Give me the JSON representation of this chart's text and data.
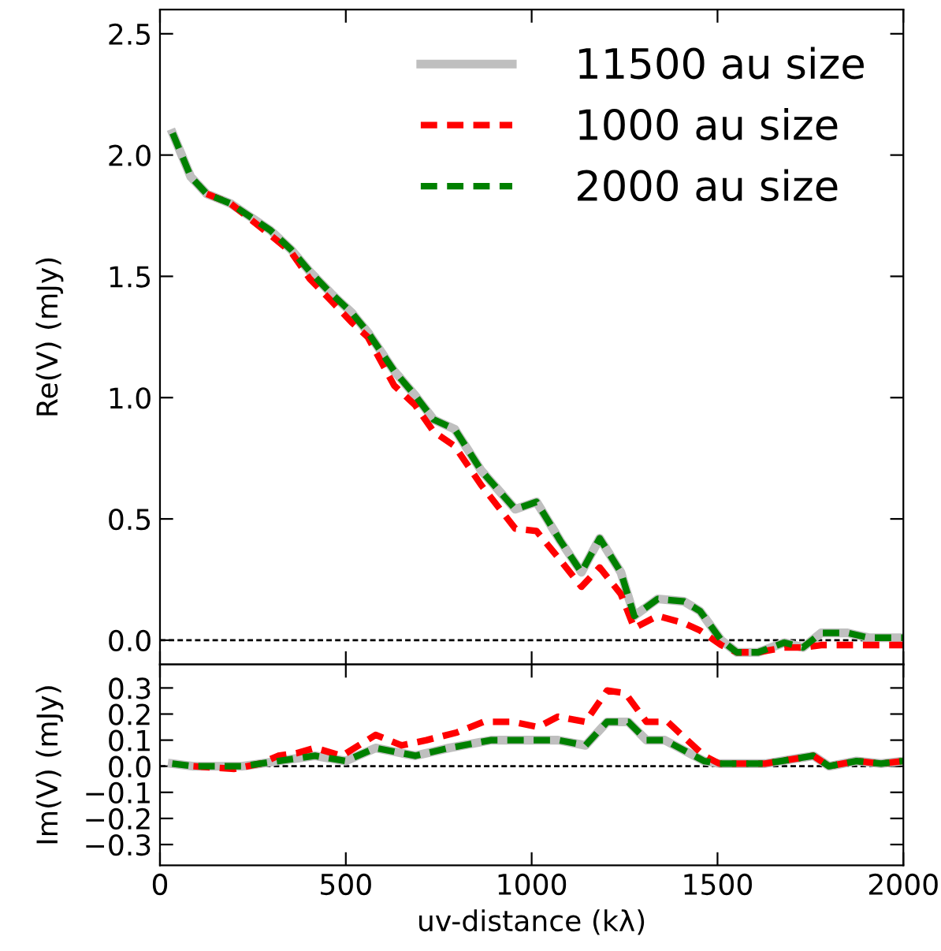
{
  "chart_data": [
    {
      "type": "line",
      "ylabel": "Re(V) (mJy)",
      "xlim": [
        0,
        2000
      ],
      "xticks": [
        0,
        500,
        1000,
        1500,
        2000
      ],
      "ylim": [
        -0.1,
        2.6
      ],
      "yticks": [
        {
          "value": 0,
          "label": "0.0"
        },
        {
          "value": 0.5,
          "label": "0.5"
        },
        {
          "value": 1,
          "label": "1.0"
        },
        {
          "value": 1.5,
          "label": "1.5"
        },
        {
          "value": 2,
          "label": "2.0"
        },
        {
          "value": 2.5,
          "label": "2.5"
        }
      ],
      "tick_labels": "y",
      "legend": "top right",
      "grid": false,
      "ref_lines": [
        {
          "axis": "y",
          "value": 0,
          "color": "#000000",
          "line_style": "dashed"
        }
      ],
      "series": [
        {
          "name": "11500 au size",
          "color": "#bfbfbf",
          "line_style": "solid",
          "x": [
            34,
            83,
            126,
            190,
            297,
            353,
            403,
            460,
            516,
            559,
            630,
            686,
            736,
            793,
            864,
            956,
            1013,
            1077,
            1134,
            1183,
            1240,
            1276,
            1339,
            1410,
            1453,
            1510,
            1552,
            1609,
            1680,
            1730,
            1779,
            1850,
            1907,
            2000
          ],
          "values": [
            2.09,
            1.91,
            1.84,
            1.8,
            1.69,
            1.61,
            1.52,
            1.43,
            1.35,
            1.27,
            1.11,
            1.01,
            0.91,
            0.87,
            0.7,
            0.54,
            0.57,
            0.41,
            0.28,
            0.42,
            0.28,
            0.1,
            0.17,
            0.16,
            0.12,
            0.0,
            -0.05,
            -0.05,
            -0.01,
            -0.03,
            0.03,
            0.03,
            0.01,
            0.01
          ]
        },
        {
          "name": "1000 au size",
          "color": "#ff0000",
          "line_style": "dashed",
          "x": [
            126,
            190,
            297,
            353,
            403,
            460,
            516,
            559,
            630,
            686,
            736,
            793,
            864,
            956,
            1013,
            1077,
            1134,
            1183,
            1240,
            1276,
            1339,
            1410,
            1453,
            1510,
            1552,
            1609,
            1680,
            1730,
            1779,
            1850,
            1907,
            2000
          ],
          "values": [
            1.84,
            1.8,
            1.67,
            1.6,
            1.49,
            1.4,
            1.31,
            1.25,
            1.05,
            0.97,
            0.86,
            0.8,
            0.64,
            0.46,
            0.45,
            0.33,
            0.22,
            0.3,
            0.19,
            0.05,
            0.1,
            0.07,
            0.04,
            -0.02,
            -0.05,
            -0.05,
            -0.03,
            -0.03,
            -0.02,
            -0.02,
            -0.02,
            -0.02
          ]
        },
        {
          "name": "2000 au size",
          "color": "#008000",
          "line_style": "dashed",
          "x": [
            34,
            83,
            126,
            190,
            297,
            353,
            403,
            460,
            516,
            559,
            630,
            686,
            736,
            793,
            864,
            956,
            1013,
            1077,
            1134,
            1183,
            1240,
            1276,
            1339,
            1410,
            1453,
            1510,
            1552,
            1609,
            1680,
            1730,
            1779,
            1850,
            1907,
            2000
          ],
          "values": [
            2.09,
            1.91,
            1.84,
            1.8,
            1.69,
            1.61,
            1.52,
            1.43,
            1.35,
            1.27,
            1.11,
            1.01,
            0.91,
            0.87,
            0.7,
            0.54,
            0.57,
            0.41,
            0.28,
            0.42,
            0.28,
            0.1,
            0.17,
            0.16,
            0.12,
            0.0,
            -0.05,
            -0.05,
            -0.01,
            -0.03,
            0.03,
            0.03,
            0.01,
            0.01
          ]
        }
      ]
    },
    {
      "type": "line",
      "ylabel": "Im(V) (mJy)",
      "xlabel": "uv-distance (kλ)",
      "xlim": [
        0,
        2000
      ],
      "xticks": [
        0,
        500,
        1000,
        1500,
        2000
      ],
      "ylim": [
        -0.38,
        0.39
      ],
      "yticks": [
        {
          "value": -0.3,
          "label": "−0.3"
        },
        {
          "value": -0.2,
          "label": "−0.2"
        },
        {
          "value": -0.1,
          "label": "−0.1"
        },
        {
          "value": 0,
          "label": "0.0"
        },
        {
          "value": 0.1,
          "label": "0.1"
        },
        {
          "value": 0.2,
          "label": "0.2"
        },
        {
          "value": 0.3,
          "label": "0.3"
        }
      ],
      "grid": false,
      "ref_lines": [
        {
          "axis": "y",
          "value": 0,
          "color": "#000000",
          "line_style": "dashed"
        }
      ],
      "series": [
        {
          "color": "#bfbfbf",
          "line_style": "solid",
          "x": [
            33,
            90,
            220,
            270,
            318,
            417,
            499,
            580,
            687,
            778,
            891,
            957,
            1071,
            1145,
            1203,
            1260,
            1309,
            1358,
            1464,
            1505,
            1628,
            1758,
            1800,
            1874,
            1940,
            2000
          ],
          "values": [
            0.01,
            0.0,
            0.0,
            0.01,
            0.02,
            0.04,
            0.02,
            0.07,
            0.04,
            0.07,
            0.1,
            0.1,
            0.1,
            0.08,
            0.17,
            0.17,
            0.1,
            0.1,
            0.02,
            0.01,
            0.01,
            0.04,
            0.0,
            0.02,
            0.01,
            0.02
          ]
        },
        {
          "color": "#ff0000",
          "line_style": "dashed",
          "x": [
            90,
            200,
            270,
            318,
            367,
            417,
            490,
            580,
            650,
            717,
            800,
            870,
            950,
            1017,
            1071,
            1145,
            1203,
            1252,
            1309,
            1366,
            1464,
            1505,
            1628,
            1758,
            1800,
            1874,
            1940,
            2000
          ],
          "values": [
            0.0,
            -0.01,
            0.01,
            0.04,
            0.05,
            0.07,
            0.04,
            0.12,
            0.08,
            0.1,
            0.13,
            0.17,
            0.17,
            0.15,
            0.19,
            0.17,
            0.29,
            0.28,
            0.17,
            0.17,
            0.04,
            0.01,
            0.01,
            0.04,
            0.0,
            0.02,
            0.01,
            0.02
          ]
        },
        {
          "color": "#008000",
          "line_style": "dashed",
          "x": [
            33,
            90,
            220,
            270,
            318,
            417,
            499,
            580,
            687,
            778,
            891,
            957,
            1071,
            1145,
            1203,
            1260,
            1309,
            1358,
            1464,
            1505,
            1628,
            1758,
            1800,
            1874,
            1940,
            2000
          ],
          "values": [
            0.01,
            0.0,
            0.0,
            0.01,
            0.02,
            0.04,
            0.02,
            0.07,
            0.04,
            0.07,
            0.1,
            0.1,
            0.1,
            0.08,
            0.17,
            0.17,
            0.1,
            0.1,
            0.02,
            0.01,
            0.01,
            0.04,
            0.0,
            0.02,
            0.01,
            0.02
          ]
        }
      ]
    }
  ]
}
